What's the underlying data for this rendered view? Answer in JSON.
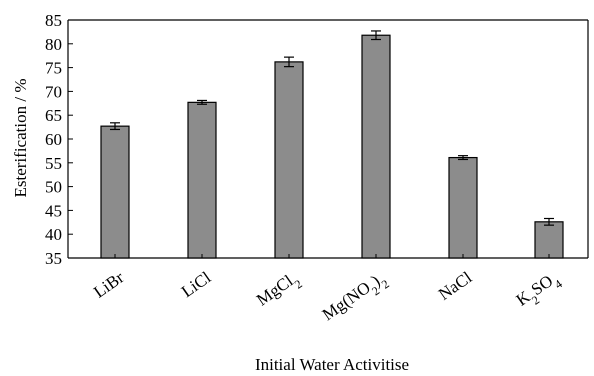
{
  "chart_data": {
    "type": "bar",
    "title": "",
    "xlabel": "Initial Water Activitise",
    "ylabel": "Esterification / %",
    "categories": [
      {
        "base": "LiBr",
        "parts": [
          {
            "t": "LiBr",
            "sub": false
          }
        ]
      },
      {
        "base": "LiCl",
        "parts": [
          {
            "t": "LiCl",
            "sub": false
          }
        ]
      },
      {
        "base": "MgCl2",
        "parts": [
          {
            "t": "MgCl",
            "sub": false
          },
          {
            "t": "2",
            "sub": true
          }
        ]
      },
      {
        "base": "Mg(NO2)2",
        "parts": [
          {
            "t": "Mg(NO",
            "sub": false
          },
          {
            "t": "2",
            "sub": true
          },
          {
            "t": ")",
            "sub": false
          },
          {
            "t": "2",
            "sub": true
          }
        ]
      },
      {
        "base": "NaCl",
        "parts": [
          {
            "t": "NaCl",
            "sub": false
          }
        ]
      },
      {
        "base": "K2SO4",
        "parts": [
          {
            "t": "K",
            "sub": false
          },
          {
            "t": "2",
            "sub": true
          },
          {
            "t": "SO",
            "sub": false
          },
          {
            "t": "4",
            "sub": true
          }
        ]
      }
    ],
    "values": [
      62.7,
      67.7,
      76.2,
      81.8,
      56.1,
      42.6
    ],
    "errors": [
      0.7,
      0.4,
      1.0,
      0.9,
      0.4,
      0.7
    ],
    "ylim": [
      35,
      85
    ],
    "yticks": [
      35,
      40,
      45,
      50,
      55,
      60,
      65,
      70,
      75,
      80,
      85
    ],
    "grid": false,
    "legend": "none",
    "colors": {
      "bar": "#8c8c8c",
      "stroke": "#000000"
    }
  }
}
